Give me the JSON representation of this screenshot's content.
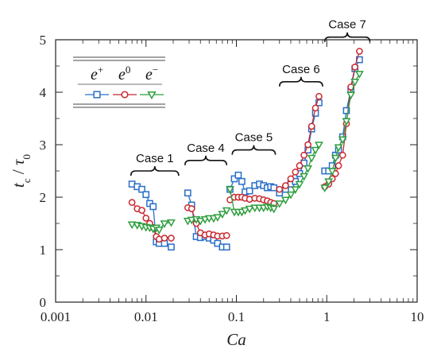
{
  "chart_data": {
    "type": "scatter",
    "x_scale": "log",
    "xlim": [
      0.001,
      10
    ],
    "ylim": [
      0,
      5
    ],
    "x_ticks": [
      0.001,
      0.01,
      0.1,
      1,
      10
    ],
    "x_tick_labels": [
      "0.001",
      "0.01",
      "0.1",
      "1",
      "10"
    ],
    "y_ticks": [
      0,
      1,
      2,
      3,
      4,
      5
    ],
    "y_tick_labels": [
      "0",
      "1",
      "2",
      "3",
      "4",
      "5"
    ],
    "xlabel": "Ca",
    "ylabel": {
      "main": "t",
      "sub": "c",
      "sep": " / ",
      "main2": "τ",
      "sub2": "0"
    },
    "legend": {
      "placement": "top-left",
      "entries": [
        {
          "base": "e",
          "sup": "+",
          "color": "#2a6fc9",
          "marker": "square"
        },
        {
          "base": "e",
          "sup": "0",
          "color": "#c8282e",
          "marker": "circle"
        },
        {
          "base": "e",
          "sup": "−",
          "color": "#2e9e3e",
          "marker": "triangle-down"
        }
      ]
    },
    "annotations": [
      {
        "label": "Case 1",
        "x_range": [
          0.0068,
          0.023
        ],
        "y": 2.5
      },
      {
        "label": "Case 4",
        "x_range": [
          0.027,
          0.078
        ],
        "y": 2.7
      },
      {
        "label": "Case 5",
        "x_range": [
          0.09,
          0.27
        ],
        "y": 2.9
      },
      {
        "label": "Case 6",
        "x_range": [
          0.3,
          0.9
        ],
        "y": 4.2
      },
      {
        "label": "Case 7",
        "x_range": [
          0.95,
          3.0
        ],
        "y": 5.05
      }
    ],
    "series": [
      {
        "name": "e+",
        "color": "#2a6fc9",
        "marker": "square",
        "segments": [
          [
            [
              0.007,
              2.25
            ],
            [
              0.008,
              2.2
            ],
            [
              0.009,
              2.15
            ],
            [
              0.01,
              2.05
            ],
            [
              0.011,
              1.88
            ],
            [
              0.012,
              1.82
            ],
            [
              0.013,
              1.15
            ],
            [
              0.014,
              1.12
            ],
            [
              0.016,
              1.12
            ],
            [
              0.019,
              1.05
            ]
          ],
          [
            [
              0.029,
              2.08
            ],
            [
              0.032,
              1.85
            ],
            [
              0.036,
              1.25
            ],
            [
              0.04,
              1.23
            ],
            [
              0.045,
              1.25
            ],
            [
              0.05,
              1.22
            ],
            [
              0.056,
              1.18
            ],
            [
              0.062,
              1.12
            ],
            [
              0.07,
              1.05
            ],
            [
              0.078,
              1.05
            ]
          ],
          [
            [
              0.085,
              2.15
            ],
            [
              0.095,
              2.35
            ],
            [
              0.105,
              2.42
            ],
            [
              0.115,
              2.3
            ],
            [
              0.125,
              2.1
            ],
            [
              0.14,
              2.12
            ],
            [
              0.16,
              2.22
            ],
            [
              0.18,
              2.25
            ],
            [
              0.2,
              2.22
            ],
            [
              0.22,
              2.18
            ],
            [
              0.24,
              2.2
            ],
            [
              0.26,
              2.18
            ]
          ],
          [
            [
              0.3,
              2.08
            ],
            [
              0.35,
              2.15
            ],
            [
              0.4,
              2.25
            ],
            [
              0.45,
              2.3
            ],
            [
              0.5,
              2.45
            ],
            [
              0.56,
              2.65
            ],
            [
              0.62,
              2.9
            ],
            [
              0.68,
              3.3
            ],
            [
              0.75,
              3.6
            ],
            [
              0.82,
              3.8
            ]
          ],
          [
            [
              0.95,
              2.5
            ],
            [
              1.05,
              2.5
            ],
            [
              1.15,
              2.6
            ],
            [
              1.25,
              2.8
            ],
            [
              1.35,
              2.9
            ],
            [
              1.5,
              3.15
            ],
            [
              1.65,
              3.65
            ],
            [
              1.85,
              4.05
            ],
            [
              2.05,
              4.45
            ],
            [
              2.3,
              4.62
            ]
          ]
        ]
      },
      {
        "name": "e0",
        "color": "#c8282e",
        "marker": "circle",
        "segments": [
          [
            [
              0.007,
              1.9
            ],
            [
              0.008,
              1.78
            ],
            [
              0.009,
              1.75
            ],
            [
              0.01,
              1.6
            ],
            [
              0.011,
              1.5
            ],
            [
              0.012,
              1.42
            ],
            [
              0.013,
              1.25
            ],
            [
              0.014,
              1.2
            ],
            [
              0.016,
              1.22
            ],
            [
              0.019,
              1.22
            ]
          ],
          [
            [
              0.029,
              1.8
            ],
            [
              0.032,
              1.78
            ],
            [
              0.036,
              1.5
            ],
            [
              0.04,
              1.32
            ],
            [
              0.045,
              1.28
            ],
            [
              0.05,
              1.3
            ],
            [
              0.056,
              1.28
            ],
            [
              0.062,
              1.26
            ],
            [
              0.07,
              1.26
            ],
            [
              0.078,
              1.27
            ]
          ],
          [
            [
              0.085,
              1.95
            ],
            [
              0.095,
              2.0
            ],
            [
              0.105,
              2.0
            ],
            [
              0.115,
              2.0
            ],
            [
              0.125,
              1.98
            ],
            [
              0.14,
              1.96
            ],
            [
              0.16,
              1.98
            ],
            [
              0.18,
              1.97
            ],
            [
              0.2,
              1.95
            ],
            [
              0.22,
              1.93
            ],
            [
              0.24,
              1.9
            ],
            [
              0.26,
              1.88
            ]
          ],
          [
            [
              0.3,
              2.15
            ],
            [
              0.35,
              2.22
            ],
            [
              0.4,
              2.35
            ],
            [
              0.45,
              2.48
            ],
            [
              0.5,
              2.6
            ],
            [
              0.56,
              2.8
            ],
            [
              0.62,
              3.0
            ],
            [
              0.68,
              3.35
            ],
            [
              0.75,
              3.7
            ],
            [
              0.82,
              3.92
            ]
          ],
          [
            [
              0.95,
              2.2
            ],
            [
              1.05,
              2.25
            ],
            [
              1.15,
              2.35
            ],
            [
              1.25,
              2.45
            ],
            [
              1.35,
              2.6
            ],
            [
              1.5,
              2.8
            ],
            [
              1.65,
              3.4
            ],
            [
              1.85,
              4.1
            ],
            [
              2.05,
              4.48
            ],
            [
              2.3,
              4.78
            ]
          ]
        ]
      },
      {
        "name": "e-",
        "color": "#2e9e3e",
        "marker": "triangle-down",
        "segments": [
          [
            [
              0.007,
              1.48
            ],
            [
              0.008,
              1.47
            ],
            [
              0.009,
              1.45
            ],
            [
              0.01,
              1.43
            ],
            [
              0.011,
              1.42
            ],
            [
              0.012,
              1.4
            ],
            [
              0.013,
              1.42
            ],
            [
              0.014,
              1.38
            ],
            [
              0.016,
              1.5
            ],
            [
              0.019,
              1.52
            ]
          ],
          [
            [
              0.029,
              1.55
            ],
            [
              0.032,
              1.57
            ],
            [
              0.036,
              1.58
            ],
            [
              0.04,
              1.55
            ],
            [
              0.045,
              1.58
            ],
            [
              0.05,
              1.6
            ],
            [
              0.056,
              1.6
            ],
            [
              0.062,
              1.62
            ],
            [
              0.07,
              1.68
            ],
            [
              0.078,
              1.75
            ]
          ],
          [
            [
              0.085,
              2.15
            ],
            [
              0.095,
              1.72
            ],
            [
              0.105,
              1.72
            ],
            [
              0.115,
              1.72
            ],
            [
              0.125,
              1.75
            ],
            [
              0.14,
              1.78
            ],
            [
              0.16,
              1.8
            ],
            [
              0.18,
              1.8
            ],
            [
              0.2,
              1.8
            ],
            [
              0.22,
              1.82
            ],
            [
              0.24,
              1.8
            ],
            [
              0.26,
              1.78
            ]
          ],
          [
            [
              0.3,
              1.88
            ],
            [
              0.35,
              1.95
            ],
            [
              0.4,
              2.05
            ],
            [
              0.45,
              2.15
            ],
            [
              0.5,
              2.25
            ],
            [
              0.56,
              2.4
            ],
            [
              0.62,
              2.55
            ],
            [
              0.68,
              2.75
            ],
            [
              0.75,
              2.9
            ],
            [
              0.82,
              3.0
            ]
          ],
          [
            [
              0.95,
              2.18
            ],
            [
              1.05,
              2.3
            ],
            [
              1.15,
              2.5
            ],
            [
              1.25,
              2.75
            ],
            [
              1.35,
              2.95
            ],
            [
              1.5,
              3.1
            ],
            [
              1.65,
              3.45
            ],
            [
              1.85,
              3.95
            ],
            [
              2.05,
              4.2
            ],
            [
              2.3,
              4.35
            ]
          ]
        ]
      }
    ]
  }
}
